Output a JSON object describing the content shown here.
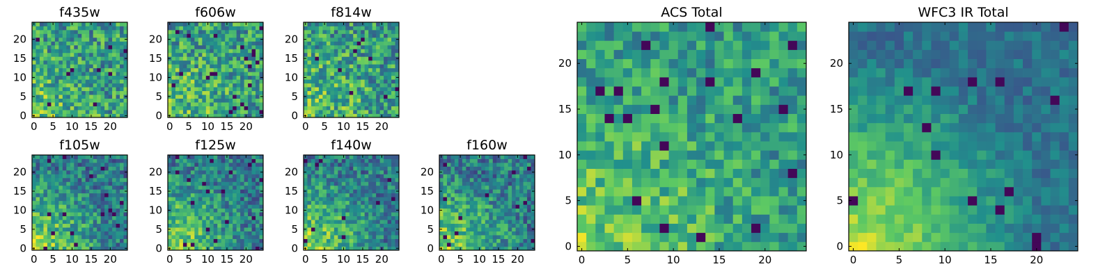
{
  "figure": {
    "colormap": [
      "#440154",
      "#3b528b",
      "#21908c",
      "#5dc963",
      "#fde725"
    ],
    "panels": [
      {
        "key": "f435w",
        "title": "f435w",
        "xticks": [
          0,
          5,
          10,
          15,
          20
        ],
        "yticks": [
          0,
          5,
          10,
          15,
          20
        ],
        "seed": 11,
        "pattern": "noise"
      },
      {
        "key": "f606w",
        "title": "f606w",
        "xticks": [
          0,
          5,
          10,
          15,
          20
        ],
        "yticks": [
          0,
          5,
          10,
          15,
          20
        ],
        "seed": 23,
        "pattern": "noise"
      },
      {
        "key": "f814w",
        "title": "f814w",
        "xticks": [
          0,
          5,
          10,
          15,
          20
        ],
        "yticks": [
          0,
          5,
          10,
          15,
          20
        ],
        "seed": 37,
        "pattern": "noise"
      },
      {
        "key": "f105w",
        "title": "f105w",
        "xticks": [
          0,
          5,
          10,
          15,
          20
        ],
        "yticks": [
          0,
          5,
          10,
          15,
          20
        ],
        "seed": 41,
        "pattern": "ir"
      },
      {
        "key": "f125w",
        "title": "f125w",
        "xticks": [
          0,
          5,
          10,
          15,
          20
        ],
        "yticks": [
          0,
          5,
          10,
          15,
          20
        ],
        "seed": 53,
        "pattern": "ir"
      },
      {
        "key": "f140w",
        "title": "f140w",
        "xticks": [
          0,
          5,
          10,
          15,
          20
        ],
        "yticks": [
          0,
          5,
          10,
          15,
          20
        ],
        "seed": 67,
        "pattern": "ir"
      },
      {
        "key": "f160w",
        "title": "f160w",
        "xticks": [
          0,
          5,
          10,
          15,
          20
        ],
        "yticks": [
          0,
          5,
          10,
          15,
          20
        ],
        "seed": 71,
        "pattern": "ir"
      },
      {
        "key": "acs_total",
        "title": "ACS Total",
        "xticks": [
          0,
          5,
          10,
          15,
          20
        ],
        "yticks": [
          0,
          5,
          10,
          15,
          20
        ],
        "seed": 89,
        "pattern": "acs"
      },
      {
        "key": "wfc3_total",
        "title": "WFC3 IR Total",
        "xticks": [
          0,
          5,
          10,
          15,
          20
        ],
        "yticks": [
          0,
          5,
          10,
          15,
          20
        ],
        "seed": 97,
        "pattern": "wfc3"
      }
    ]
  },
  "chart_data": {
    "type": "heatmap",
    "grid_size": 25,
    "xlim": [
      0,
      24
    ],
    "ylim": [
      0,
      24
    ],
    "origin": "lower",
    "panels": [
      "f435w",
      "f606w",
      "f814w",
      "f105w",
      "f125w",
      "f140w",
      "f160w",
      "ACS Total",
      "WFC3 IR Total"
    ]
  }
}
